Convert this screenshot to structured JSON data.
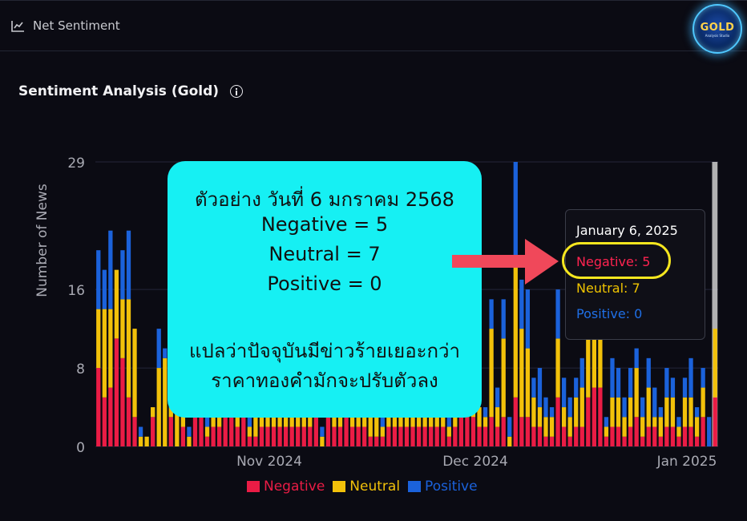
{
  "header": {
    "tab_label": "Net Sentiment"
  },
  "logo": {
    "text": "GOLD",
    "subtext": "Analysis Studio"
  },
  "panel": {
    "title": "Sentiment Analysis (Gold)"
  },
  "colors": {
    "negative": "#ea1c45",
    "neutral": "#f2c10a",
    "positive": "#1b62db",
    "highlight_bar": "#cfcfcf"
  },
  "chart_data": {
    "type": "bar",
    "stacked": true,
    "ylabel": "Number of News",
    "ylim": [
      0,
      29
    ],
    "y_ticks": [
      0,
      8,
      16,
      29
    ],
    "x_tick_labels": [
      "Nov 2024",
      "Dec 2024",
      "Jan 2025"
    ],
    "legend_position": "bottom",
    "series": [
      {
        "name": "Negative",
        "values": [
          8,
          5,
          6,
          11,
          9,
          5,
          3,
          0,
          0,
          3,
          0,
          0,
          3,
          0,
          2,
          0,
          9,
          3,
          1,
          2,
          2,
          3,
          3,
          2,
          3,
          1,
          1,
          2,
          2,
          2,
          2,
          2,
          2,
          2,
          2,
          2,
          3,
          0,
          3,
          2,
          2,
          3,
          2,
          2,
          2,
          1,
          1,
          1,
          2,
          2,
          2,
          2,
          2,
          2,
          2,
          2,
          2,
          2,
          1,
          2,
          3,
          3,
          3,
          2,
          2,
          3,
          2,
          3,
          0,
          5,
          3,
          3,
          2,
          2,
          1,
          1,
          5,
          2,
          1,
          2,
          2,
          5,
          6,
          6,
          1,
          2,
          2,
          1,
          2,
          3,
          1,
          2,
          2,
          1,
          2,
          2,
          1,
          2,
          2,
          1,
          3,
          0,
          5
        ]
      },
      {
        "name": "Neutral",
        "values": [
          6,
          9,
          8,
          7,
          6,
          10,
          9,
          1,
          1,
          1,
          8,
          9,
          5,
          7,
          2,
          1,
          8,
          6,
          1,
          3,
          2,
          7,
          4,
          3,
          4,
          1,
          2,
          2,
          4,
          4,
          3,
          3,
          3,
          2,
          3,
          3,
          8,
          1,
          3,
          2,
          3,
          4,
          2,
          2,
          3,
          2,
          2,
          1,
          2,
          3,
          3,
          3,
          2,
          2,
          3,
          2,
          2,
          3,
          1,
          2,
          12,
          11,
          8,
          2,
          1,
          9,
          2,
          8,
          1,
          14,
          9,
          7,
          3,
          2,
          2,
          2,
          6,
          2,
          2,
          3,
          4,
          6,
          6,
          10,
          1,
          3,
          3,
          2,
          3,
          5,
          2,
          4,
          1,
          2,
          3,
          3,
          1,
          3,
          3,
          2,
          3,
          0,
          7
        ]
      },
      {
        "name": "Positive",
        "values": [
          6,
          4,
          8,
          0,
          5,
          7,
          0,
          1,
          0,
          0,
          4,
          1,
          8,
          0,
          0,
          1,
          0,
          0,
          1,
          1,
          1,
          1,
          1,
          1,
          1,
          1,
          1,
          1,
          1,
          1,
          1,
          1,
          1,
          1,
          1,
          1,
          1,
          1,
          0,
          0,
          1,
          0,
          1,
          1,
          1,
          1,
          1,
          1,
          1,
          1,
          1,
          1,
          1,
          1,
          1,
          1,
          1,
          1,
          1,
          1,
          2,
          3,
          5,
          0,
          1,
          3,
          2,
          4,
          2,
          10,
          5,
          6,
          2,
          4,
          2,
          1,
          5,
          3,
          2,
          2,
          3,
          4,
          4,
          3,
          1,
          4,
          3,
          2,
          3,
          2,
          2,
          3,
          3,
          1,
          3,
          2,
          1,
          2,
          4,
          1,
          2,
          3,
          0
        ]
      }
    ],
    "highlight_index": 102
  },
  "callout": {
    "lines": [
      "ตัวอย่าง วันที่ 6 มกราคม 2568",
      "Negative = 5",
      "Neutral = 7",
      "Positive = 0",
      "แปลว่าปัจจุบันมีข่าวร้ายเยอะกว่า",
      "ราคาทองคำมักจะปรับตัวลง"
    ]
  },
  "tooltip": {
    "date": "January 6, 2025",
    "negative": "Negative: 5",
    "neutral": "Neutral: 7",
    "positive": "Positive: 0"
  },
  "legend": {
    "negative": "Negative",
    "neutral": "Neutral",
    "positive": "Positive"
  }
}
